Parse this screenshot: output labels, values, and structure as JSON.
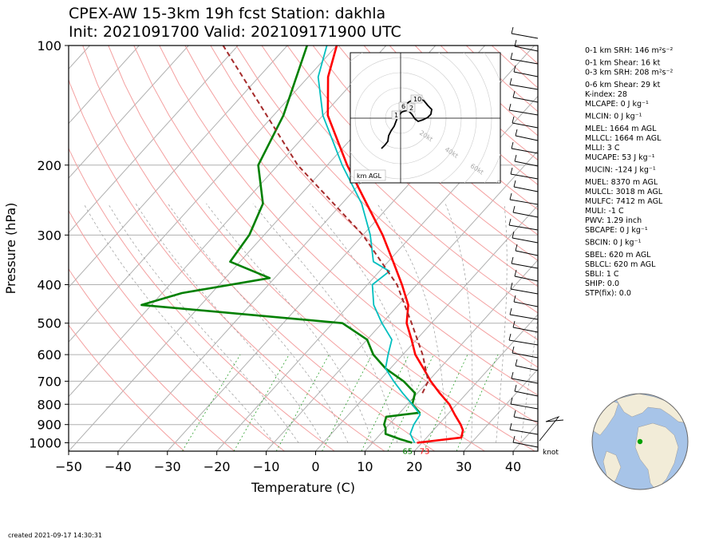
{
  "title_line1": "CPEX-AW 15-3km  19h fcst  Station: dakhla",
  "title_line2": "Init: 2021091700  Valid: 202109171900 UTC",
  "created": "created 2021-09-17 14:30:31",
  "colors": {
    "temperature": "#ff0000",
    "dewpoint": "#008000",
    "wetbulb": "#00bfbf",
    "parcel": "#a52a2a",
    "isotherm": "#b0b0b0",
    "dry_adiabat": "#f4a0a0",
    "moist_adiabat": "#999999",
    "mixing_ratio": "#2ca02c"
  },
  "chart_data": {
    "type": "line",
    "title": "CPEX-AW 15-3km  19h fcst  Station: dakhla",
    "xlabel": "Temperature (C)",
    "ylabel": "Pressure (hPa)",
    "xlim": [
      -50,
      45
    ],
    "ylim": [
      1050,
      100
    ],
    "yscale": "log",
    "skew": true,
    "x_ticks": [
      -50,
      -40,
      -30,
      -20,
      -10,
      0,
      10,
      20,
      30,
      40
    ],
    "y_ticks": [
      100,
      200,
      300,
      400,
      500,
      600,
      700,
      800,
      900,
      1000
    ],
    "surface_labels": {
      "dewpoint": "65",
      "temperature": "73"
    },
    "series": [
      {
        "name": "temperature",
        "points": [
          [
            1000,
            19
          ],
          [
            970,
            27
          ],
          [
            930,
            26
          ],
          [
            900,
            24.5
          ],
          [
            850,
            21.5
          ],
          [
            800,
            18.5
          ],
          [
            750,
            14.5
          ],
          [
            700,
            10.5
          ],
          [
            650,
            6.7
          ],
          [
            600,
            2.5
          ],
          [
            550,
            -1
          ],
          [
            500,
            -5
          ],
          [
            450,
            -8
          ],
          [
            400,
            -13
          ],
          [
            350,
            -19
          ],
          [
            300,
            -26
          ],
          [
            250,
            -35
          ],
          [
            200,
            -46
          ],
          [
            150,
            -59
          ],
          [
            120,
            -66
          ],
          [
            100,
            -70
          ]
        ]
      },
      {
        "name": "dewpoint",
        "points": [
          [
            1000,
            18
          ],
          [
            980,
            15
          ],
          [
            950,
            11
          ],
          [
            920,
            10
          ],
          [
            900,
            9
          ],
          [
            860,
            8
          ],
          [
            840,
            14
          ],
          [
            800,
            11
          ],
          [
            750,
            9.5
          ],
          [
            700,
            5
          ],
          [
            650,
            -1
          ],
          [
            600,
            -6
          ],
          [
            550,
            -10
          ],
          [
            500,
            -18
          ],
          [
            450,
            -62
          ],
          [
            420,
            -56
          ],
          [
            385,
            -41
          ],
          [
            350,
            -52
          ],
          [
            300,
            -53
          ],
          [
            250,
            -56
          ],
          [
            200,
            -64
          ],
          [
            150,
            -68
          ],
          [
            100,
            -76
          ]
        ]
      },
      {
        "name": "wetbulb",
        "points": [
          [
            1000,
            18.5
          ],
          [
            950,
            16
          ],
          [
            900,
            15
          ],
          [
            850,
            14.5
          ],
          [
            800,
            11
          ],
          [
            750,
            7
          ],
          [
            700,
            3
          ],
          [
            650,
            -1
          ],
          [
            600,
            -3
          ],
          [
            550,
            -5
          ],
          [
            500,
            -10
          ],
          [
            450,
            -15
          ],
          [
            400,
            -19
          ],
          [
            370,
            -18
          ],
          [
            350,
            -23
          ],
          [
            300,
            -28.5
          ],
          [
            250,
            -36
          ],
          [
            200,
            -47
          ],
          [
            150,
            -60
          ],
          [
            120,
            -68
          ],
          [
            100,
            -72
          ]
        ]
      },
      {
        "name": "parcel",
        "points": [
          [
            750,
            11
          ],
          [
            700,
            10
          ],
          [
            600,
            4
          ],
          [
            500,
            -4
          ],
          [
            400,
            -14
          ],
          [
            300,
            -30
          ],
          [
            200,
            -56
          ],
          [
            100,
            -93
          ]
        ]
      }
    ],
    "hodograph": {
      "rings_kt": [
        20,
        40,
        60,
        80
      ],
      "ring_labels": [
        "20kt",
        "40kt",
        "60kt",
        "80kt"
      ],
      "km_labels": [
        "1",
        "2",
        "6",
        "10"
      ],
      "legend": "km AGL"
    },
    "wind_unit": "knot"
  },
  "indices": [
    "0-1 km SRH: 146 m²s⁻²",
    "0-1 km Shear: 16 kt",
    "0-3 km SRH: 208 m²s⁻²",
    "0-6 km Shear: 29 kt",
    "K-index: 28",
    "MLCAPE: 0 J kg⁻¹",
    "MLCIN: 0 J kg⁻¹",
    "MLEL: 1664 m AGL",
    "MLLCL: 1664 m AGL",
    "MLLI: 3 C",
    "MUCAPE: 53 J kg⁻¹",
    "MUCIN: -124 J kg⁻¹",
    "MUEL: 8370 m AGL",
    "MULCL: 3018 m AGL",
    "MULFC: 7412 m AGL",
    "MULI: -1 C",
    "PWV: 1.29 inch",
    "SBCAPE: 0 J kg⁻¹",
    "SBCIN: 0 J kg⁻¹",
    "SBEL: 620 m AGL",
    "SBLCL: 620 m AGL",
    "SBLI: 1 C",
    "SHIP: 0.0",
    "STP(fix): 0.0"
  ]
}
